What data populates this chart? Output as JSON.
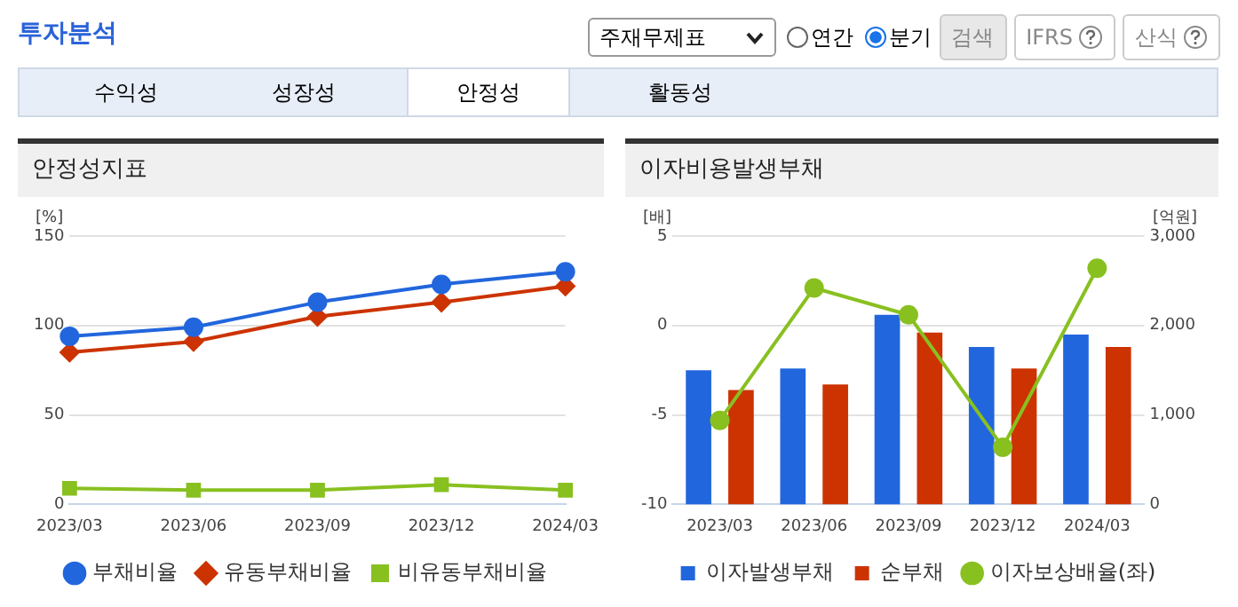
{
  "chart_data": [
    {
      "type": "line",
      "title": "안정성지표",
      "ylabel": "[%]",
      "categories": [
        "2023/03",
        "2023/06",
        "2023/09",
        "2023/12",
        "2024/03"
      ],
      "series": [
        {
          "name": "부채비율",
          "color": "#2266dd",
          "marker": "circle",
          "values": [
            94,
            99,
            113,
            123,
            130
          ]
        },
        {
          "name": "유동부채비율",
          "color": "#cc3300",
          "marker": "diamond",
          "values": [
            85,
            91,
            105,
            113,
            122
          ]
        },
        {
          "name": "비유동부채비율",
          "color": "#88c020",
          "marker": "square",
          "values": [
            9,
            8,
            8,
            11,
            8
          ]
        }
      ],
      "ylim": [
        0,
        150
      ],
      "yticks": [
        0,
        50,
        100,
        150
      ],
      "grid": "y",
      "legend": "bottom",
      "annotations": [
        "투자분석",
        "주재무제표",
        "연간",
        "분기",
        "검색",
        "IFRS",
        "산식",
        "수익성",
        "성장성",
        "안정성",
        "활동성"
      ]
    },
    {
      "type": "bar",
      "title": "이자비용발생부채",
      "ylabel": "[배]",
      "y2label": "[억원]",
      "categories": [
        "2023/03",
        "2023/06",
        "2023/09",
        "2023/12",
        "2024/03"
      ],
      "series": [
        {
          "name": "이자발생부채",
          "color": "#2266dd",
          "axis": "y2",
          "values": [
            1500,
            1520,
            2120,
            1760,
            1900
          ]
        },
        {
          "name": "순부채",
          "color": "#cc3300",
          "axis": "y2",
          "values": [
            1280,
            1340,
            1920,
            1520,
            1760
          ]
        },
        {
          "name": "이자보상배율(좌)",
          "type": "line",
          "color": "#88c020",
          "marker": "circle",
          "values": [
            -5.3,
            2.1,
            0.6,
            -6.8,
            3.2
          ]
        }
      ],
      "ylim": [
        -10,
        5
      ],
      "yticks": [
        -10,
        -5,
        0,
        5
      ],
      "y2lim": [
        0,
        3000
      ],
      "y2ticks": [
        0,
        {
          "value": 1000,
          "label": "1,000"
        },
        {
          "value": 2000,
          "label": "2,000"
        },
        {
          "value": 3000,
          "label": "3,000"
        }
      ],
      "grid": "y",
      "legend": "bottom"
    }
  ]
}
